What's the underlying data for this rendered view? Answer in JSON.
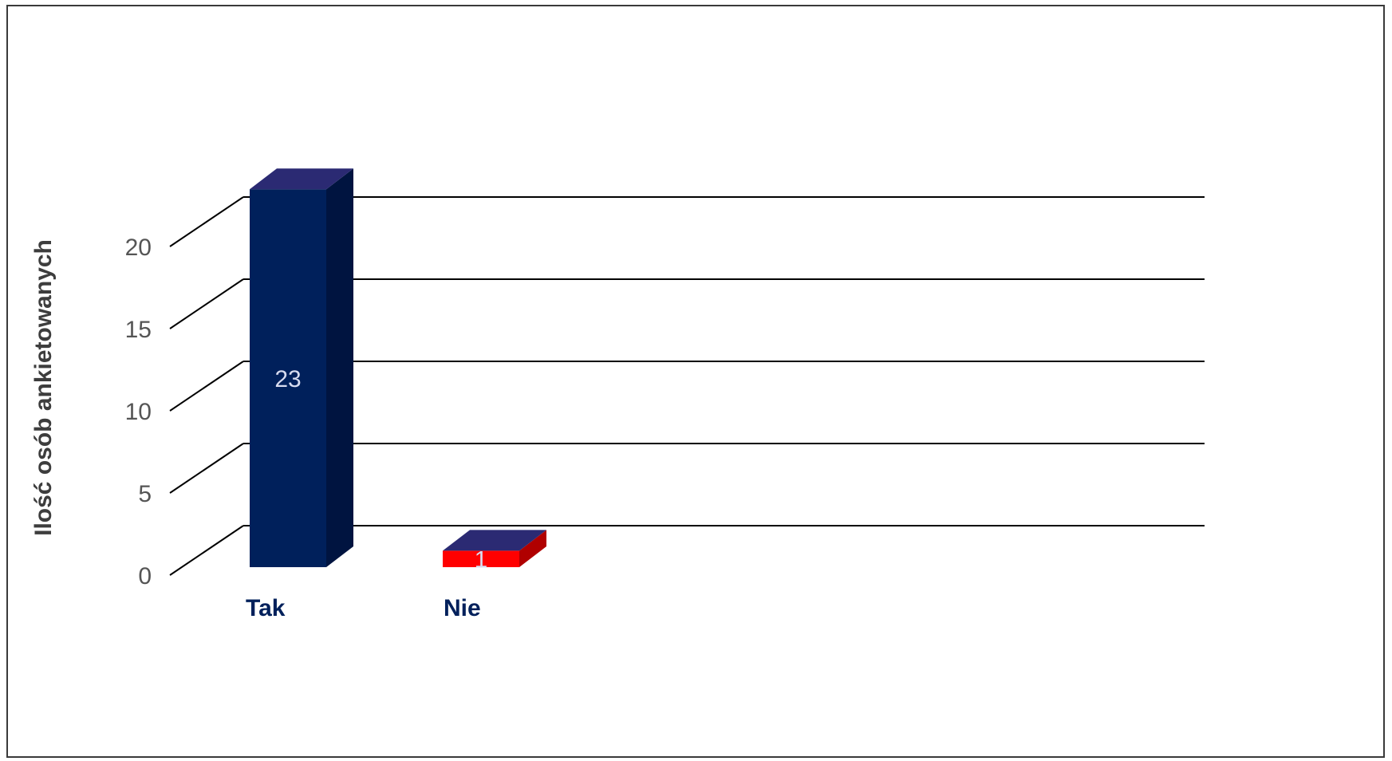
{
  "chart_data": {
    "type": "bar",
    "title": "",
    "xlabel": "",
    "ylabel": "Ilość osób ankietowanych",
    "categories": [
      "Tak",
      "Nie"
    ],
    "values": [
      23,
      1
    ],
    "data_labels": [
      "23",
      "1"
    ],
    "yticks": [
      "0",
      "5",
      "10",
      "15",
      "20"
    ],
    "ylim": [
      0,
      25
    ],
    "grid": true,
    "legend": "none",
    "style": "3d",
    "colors": {
      "bars": [
        "#00205b",
        "#ff0000"
      ],
      "bar_sides": [
        "#001440",
        "#b00000"
      ],
      "bar_tops": [
        "#2b2a73",
        "#2b2a73"
      ],
      "category_label": "#00205b",
      "gridline": "#000000"
    }
  }
}
